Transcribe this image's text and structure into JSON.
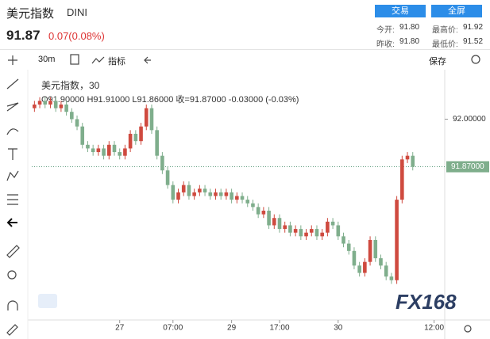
{
  "header": {
    "title": "美元指数",
    "symbol": "DINI",
    "price": "91.87",
    "change": "0.07(0.08%)",
    "buttons": [
      "交易",
      "全屏"
    ],
    "stats": [
      {
        "label": "今开:",
        "value": "91.80"
      },
      {
        "label": "最高价:",
        "value": "91.92"
      },
      {
        "label": "昨收:",
        "value": "91.80"
      },
      {
        "label": "最低价:",
        "value": "91.52"
      }
    ]
  },
  "toolbar": {
    "interval": "30m",
    "indicators": "指标",
    "save": "保存"
  },
  "legend": {
    "name": "美元指数，30",
    "ohlc": "O91.90000  H91.91000  L91.86000  收=91.87000  -0.03000 (-0.03%)"
  },
  "watermark": "FX168",
  "chart_data": {
    "type": "candlestick",
    "up_color": "#cf4a3f",
    "down_color": "#7fae8c",
    "open": [
      92.03,
      92.04,
      92.05,
      92.04,
      92.05,
      92.03,
      92.04,
      92.02,
      92.0,
      91.98,
      91.93,
      91.92,
      91.91,
      91.92,
      91.9,
      91.93,
      91.91,
      91.9,
      91.92,
      91.96,
      91.94,
      91.98,
      92.03,
      91.97,
      91.9,
      91.86,
      91.82,
      91.78,
      91.8,
      91.82,
      91.79,
      91.8,
      91.81,
      91.8,
      91.79,
      91.8,
      91.79,
      91.8,
      91.78,
      91.79,
      91.78,
      91.77,
      91.76,
      91.74,
      91.75,
      91.71,
      91.73,
      91.7,
      91.71,
      91.69,
      91.7,
      91.68,
      91.69,
      91.7,
      91.68,
      91.69,
      91.72,
      91.71,
      91.68,
      91.66,
      91.64,
      91.6,
      91.58,
      91.61,
      91.67,
      91.62,
      91.6,
      91.57,
      91.56,
      91.78,
      91.89,
      91.9
    ],
    "high": [
      92.05,
      92.06,
      92.06,
      92.06,
      92.06,
      92.05,
      92.05,
      92.03,
      92.01,
      91.99,
      91.94,
      91.93,
      91.93,
      91.93,
      91.94,
      91.94,
      91.92,
      91.93,
      91.97,
      91.97,
      91.99,
      92.04,
      92.04,
      91.98,
      91.91,
      91.87,
      91.83,
      91.81,
      91.83,
      91.83,
      91.81,
      91.82,
      91.82,
      91.81,
      91.81,
      91.81,
      91.81,
      91.81,
      91.8,
      91.8,
      91.79,
      91.78,
      91.77,
      91.76,
      91.76,
      91.74,
      91.74,
      91.72,
      91.72,
      91.71,
      91.71,
      91.7,
      91.71,
      91.71,
      91.7,
      91.73,
      91.73,
      91.72,
      91.69,
      91.67,
      91.65,
      91.61,
      91.62,
      91.68,
      91.68,
      91.63,
      91.61,
      91.58,
      91.79,
      91.9,
      91.91,
      91.91
    ],
    "low": [
      92.02,
      92.03,
      92.03,
      92.03,
      92.02,
      92.02,
      92.01,
      91.99,
      91.97,
      91.92,
      91.91,
      91.9,
      91.9,
      91.89,
      91.89,
      91.9,
      91.89,
      91.89,
      91.91,
      91.93,
      91.93,
      91.97,
      91.96,
      91.89,
      91.85,
      91.81,
      91.77,
      91.77,
      91.79,
      91.78,
      91.78,
      91.79,
      91.79,
      91.78,
      91.78,
      91.78,
      91.78,
      91.77,
      91.77,
      91.77,
      91.76,
      91.75,
      91.73,
      91.73,
      91.7,
      91.7,
      91.69,
      91.69,
      91.68,
      91.68,
      91.67,
      91.67,
      91.68,
      91.67,
      91.67,
      91.68,
      91.7,
      91.67,
      91.65,
      91.63,
      91.59,
      91.57,
      91.57,
      91.6,
      91.61,
      91.59,
      91.56,
      91.55,
      91.55,
      91.77,
      91.88,
      91.86
    ],
    "close": [
      92.04,
      92.05,
      92.04,
      92.05,
      92.03,
      92.04,
      92.02,
      92.0,
      91.98,
      91.93,
      91.92,
      91.91,
      91.92,
      91.9,
      91.93,
      91.91,
      91.9,
      91.92,
      91.96,
      91.94,
      91.98,
      92.03,
      91.97,
      91.9,
      91.86,
      91.82,
      91.78,
      91.8,
      91.82,
      91.79,
      91.8,
      91.81,
      91.8,
      91.79,
      91.8,
      91.79,
      91.8,
      91.78,
      91.79,
      91.78,
      91.77,
      91.76,
      91.74,
      91.75,
      91.71,
      91.73,
      91.7,
      91.71,
      91.69,
      91.7,
      91.68,
      91.69,
      91.7,
      91.68,
      91.69,
      91.72,
      91.71,
      91.68,
      91.66,
      91.64,
      91.6,
      91.58,
      91.61,
      91.67,
      91.62,
      91.6,
      91.57,
      91.56,
      91.78,
      91.89,
      91.9,
      91.87
    ],
    "ylim": [
      91.46,
      92.12
    ],
    "yticks": [
      {
        "value": 92,
        "label": "92.00000"
      }
    ],
    "xlim": [
      -0.5,
      77
    ],
    "xticks": [
      {
        "value": 16,
        "label": "27"
      },
      {
        "value": 26,
        "label": "07:00"
      },
      {
        "value": 37,
        "label": "29"
      },
      {
        "value": 46,
        "label": "17:00"
      },
      {
        "value": 57,
        "label": "30"
      },
      {
        "value": 75,
        "label": "12:00"
      }
    ],
    "last_price": {
      "value": 91.87,
      "label": "91.87000"
    }
  }
}
